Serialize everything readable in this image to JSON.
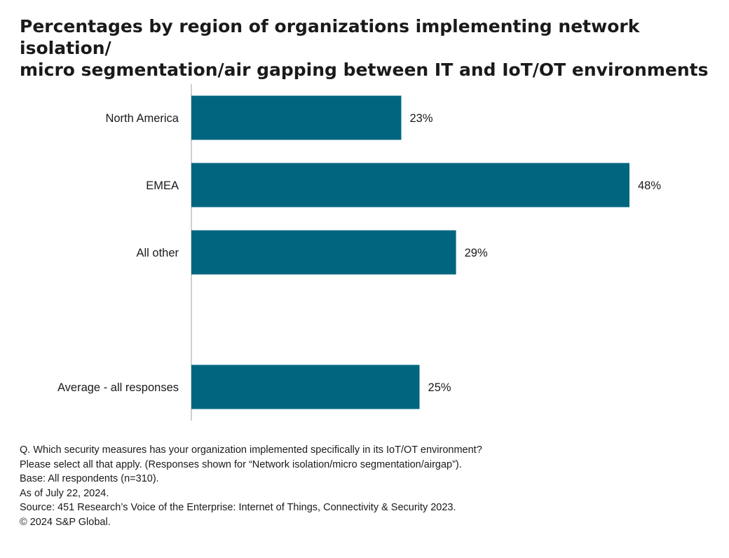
{
  "title_line1": "Percentages by region of organizations implementing network isolation/",
  "title_line2": "micro segmentation/air gapping between IT and IoT/OT environments",
  "chart_data": {
    "type": "bar",
    "orientation": "horizontal",
    "categories": [
      "North America",
      "EMEA",
      "All other",
      "Average - all responses"
    ],
    "values": [
      23,
      48,
      29,
      25
    ],
    "data_labels": [
      "23%",
      "48%",
      "29%",
      "25%"
    ],
    "unit": "%",
    "xlim": [
      0,
      50
    ],
    "bar_color": "#006680",
    "grid": false,
    "legend": "none"
  },
  "footnotes": {
    "question_line1": "Q. Which security measures has your organization implemented specifically in its IoT/OT environment?",
    "question_line2": "Please select all that apply. (Responses shown for “Network isolation/micro segmentation/airgap”).",
    "base": "Base: All respondents (n=310).",
    "as_of": "As of July 22, 2024.",
    "source": "Source: 451 Research’s Voice of the Enterprise: Internet of Things, Connectivity & Security 2023.",
    "copyright": "© 2024 S&P Global."
  }
}
